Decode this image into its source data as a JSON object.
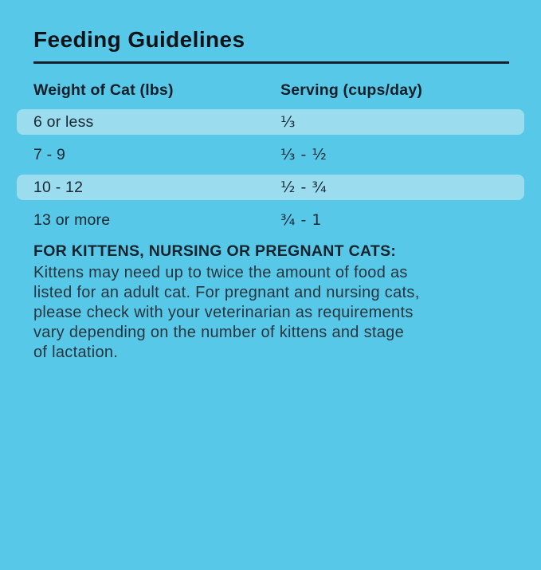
{
  "page": {
    "title": "Feeding Guidelines"
  },
  "table": {
    "columns": {
      "weight": "Weight of Cat (lbs)",
      "serving": "Serving (cups/day)"
    },
    "rows": [
      {
        "weight": "6 or less",
        "serving": "⅓",
        "highlighted": true
      },
      {
        "weight": "7 - 9",
        "serving": "⅓ - ½",
        "highlighted": false
      },
      {
        "weight": "10 - 12",
        "serving": "½ - ¾",
        "highlighted": true
      },
      {
        "weight": "13 or more",
        "serving": "¾ - 1",
        "highlighted": false
      }
    ]
  },
  "note": {
    "heading": "FOR KITTENS, NURSING OR PREGNANT CATS:",
    "body": "Kittens may need up to twice the amount of food as\nlisted for an adult cat. For pregnant and nursing cats,\nplease check with your veterinarian as requirements\nvary depending on the number of kittens and stage\nof lactation."
  },
  "colors": {
    "background": "#58C8E8",
    "row_highlight": "#9BDDEE",
    "title_text": "#0D1318",
    "body_text": "#27353E",
    "rule": "#15222E"
  }
}
